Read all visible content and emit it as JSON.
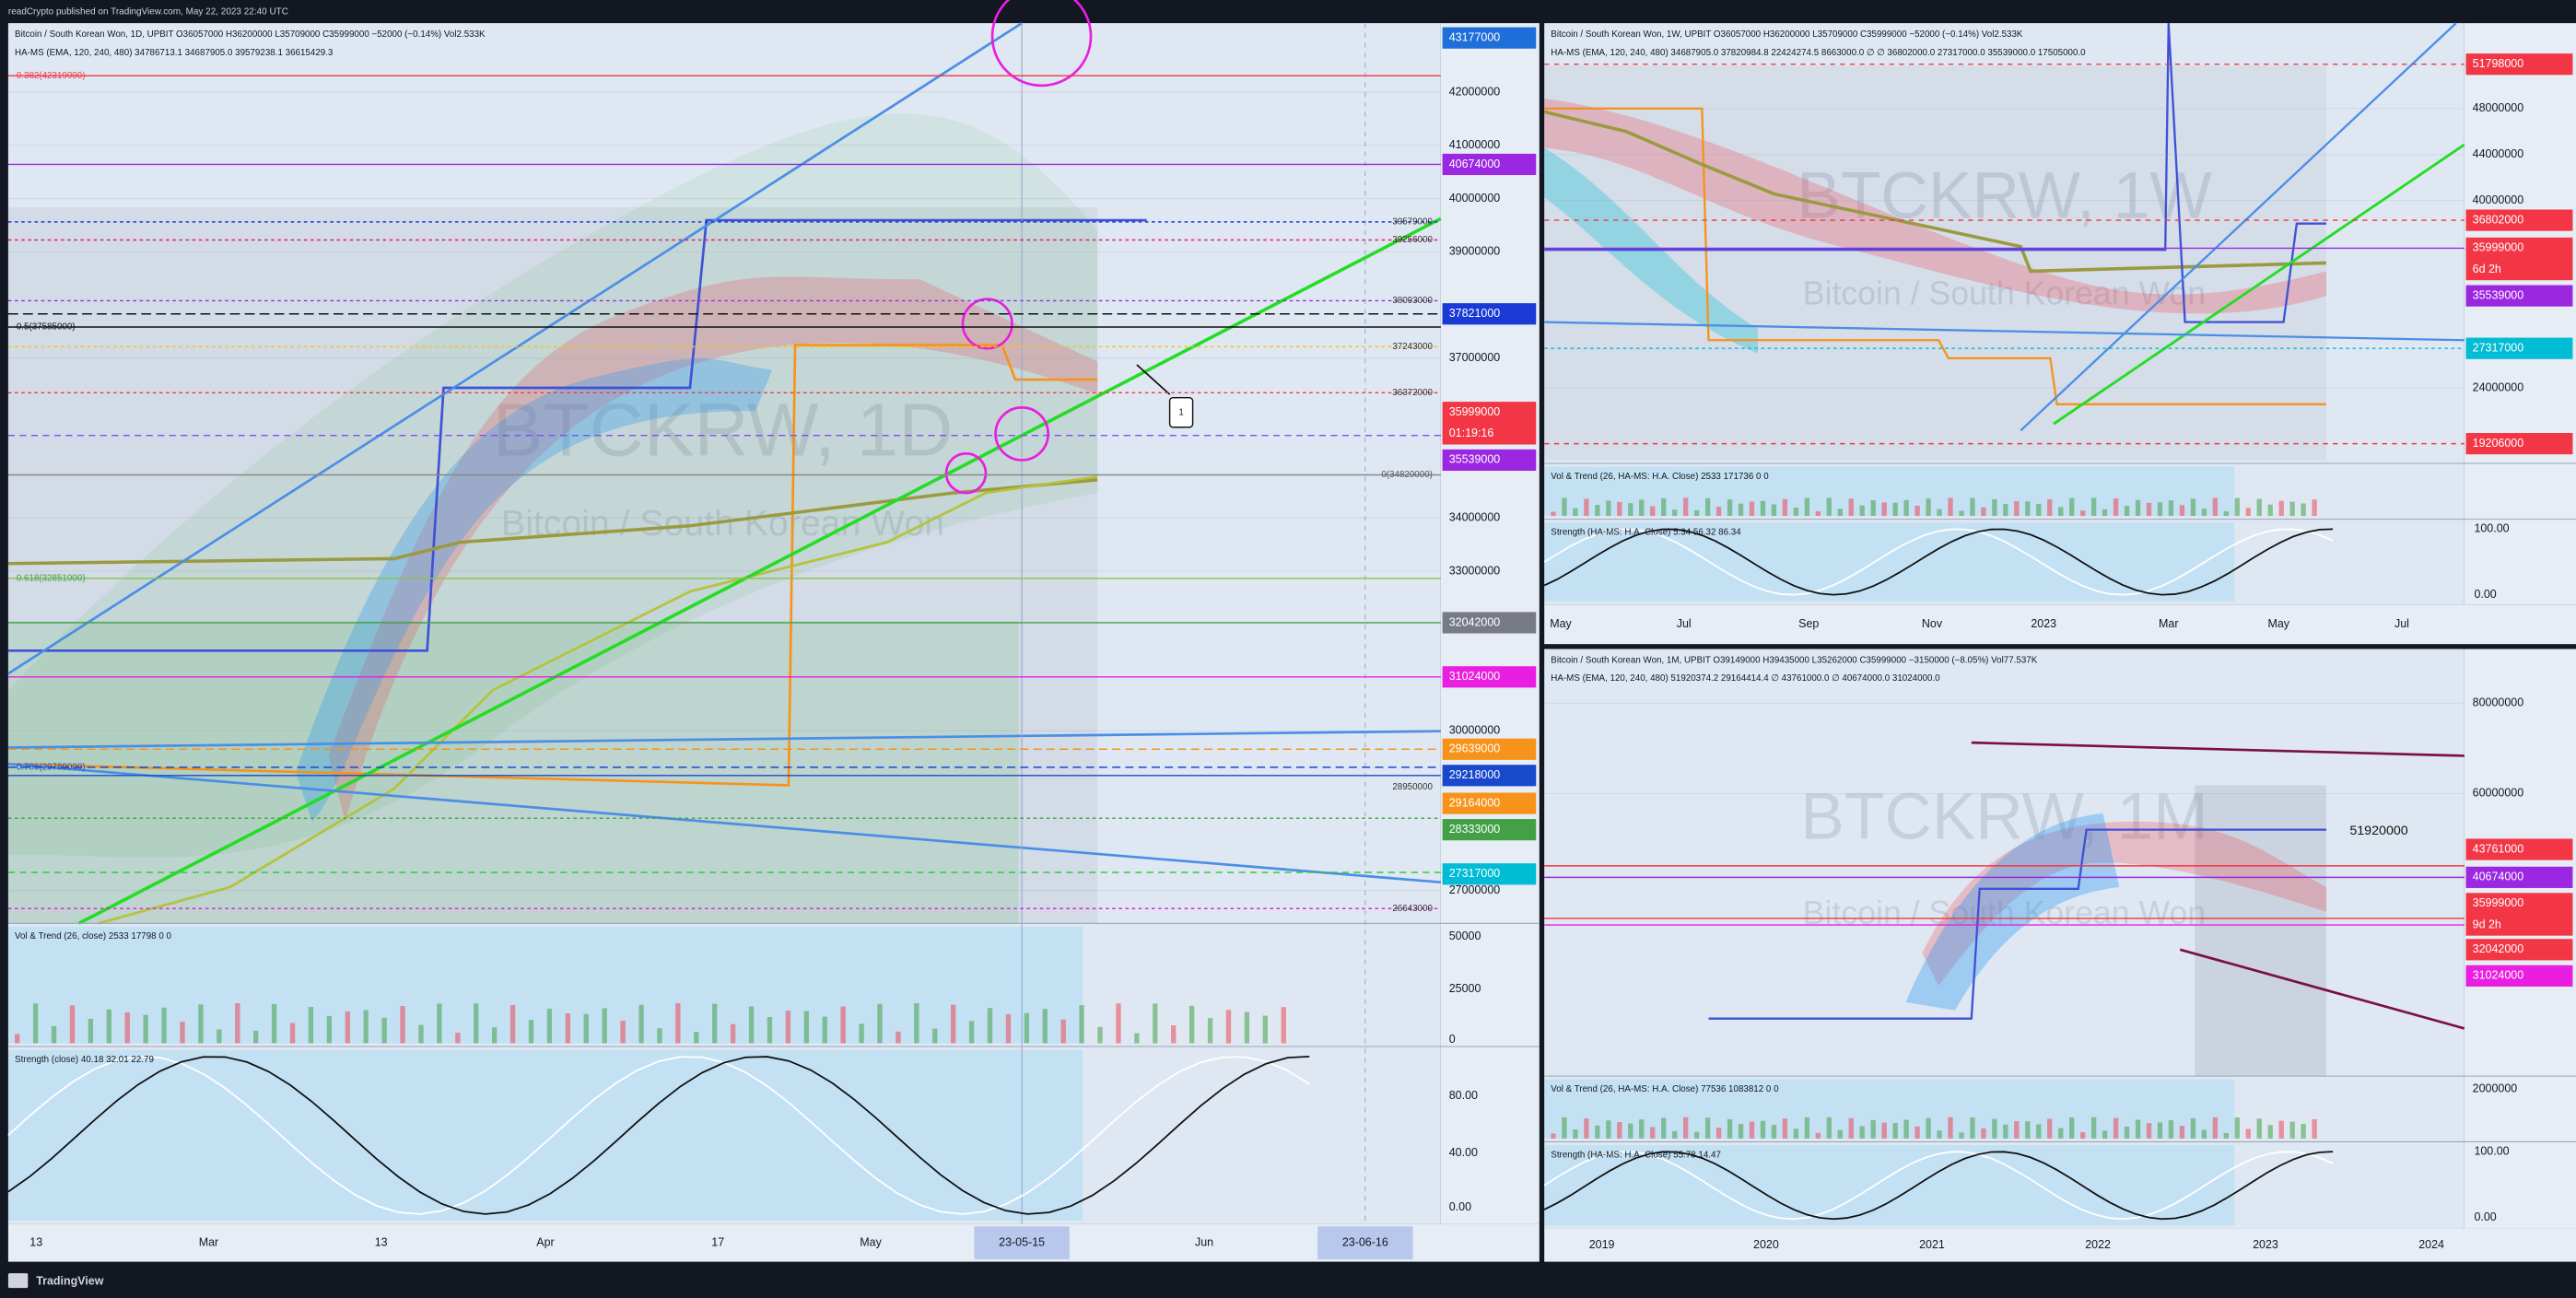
{
  "header": {
    "publisher": "readCrypto published on TradingView.com, May 22, 2023 22:40 UTC"
  },
  "footer": {
    "brand": "TradingView"
  },
  "panes": [
    {
      "watermark": "BTCKRW, 1D",
      "watermark_sub": "Bitcoin / South Korean Won",
      "legend_main": "Bitcoin / South Korean Won, 1D, UPBIT  O36057000  H36200000  L35709000  C35999000  −52000 (−0.14%)  Vol2.533K",
      "legend_ind": "HA-MS (EMA, 120, 240, 480)  34786713.1  34687905.0  39579238.1  36615429.3",
      "price_ticks": [
        42000000,
        41000000,
        40000000,
        39000000,
        37000000,
        34000000,
        33000000,
        30000000,
        27000000
      ],
      "badges": [
        {
          "label": 43177000
        },
        {
          "label": 40674000
        },
        {
          "label": 37821000
        },
        {
          "label": 35999000,
          "sub": "01:19:16"
        },
        {
          "label": 35539000
        },
        {
          "label": 32042000
        },
        {
          "label": 31024000
        },
        {
          "label": 29639000
        },
        {
          "label": 29218000
        },
        {
          "label": 29164000
        },
        {
          "label": 28333000
        },
        {
          "label": 27317000
        }
      ],
      "chart_labels": [
        "0.382(42319000)",
        39579000,
        39256000,
        38093000,
        "0.5(37585000)",
        37243000,
        36372000,
        "0(34820000)",
        "0.618(32851000)",
        "0.786(29789000)",
        28950000,
        26643000,
        "1"
      ],
      "vol_legend": "Vol & Trend (26, close)  2533  17798  0  0",
      "vol_ticks": [
        50000,
        25000,
        0
      ],
      "strength_legend": "Strength (close)  40.18  32.01  22.79",
      "strength_ticks": [
        "80.00",
        "40.00",
        "0.00"
      ],
      "time_labels": [
        "13",
        "Mar",
        "13",
        "Apr",
        "17",
        "May",
        "Jun"
      ],
      "time_badges": [
        "23-05-15",
        "23-06-16"
      ]
    },
    {
      "watermark": "BTCKRW, 1W",
      "watermark_sub": "Bitcoin / South Korean Won",
      "legend_main": "Bitcoin / South Korean Won, 1W, UPBIT  O36057000  H36200000  L35709000  C35999000  −52000 (−0.14%)  Vol2.533K",
      "legend_ind": "HA-MS (EMA, 120, 240, 480)  34687905.0  37820984.8  22424274.5  8663000.0  ∅  ∅  36802000.0  27317000.0  35539000.0  17505000.0",
      "price_ticks": [
        48000000,
        44000000,
        40000000,
        24000000
      ],
      "badges": [
        {
          "label": 51798000
        },
        {
          "label": 36802000
        },
        {
          "label": 35999000,
          "sub": "6d 2h"
        },
        {
          "label": 35539000
        },
        {
          "label": 27317000
        },
        {
          "label": 19206000
        }
      ],
      "chart_labels": [],
      "vol_legend": "Vol & Trend (26, HA-MS: H.A. Close)  2533  171736  0  0",
      "vol_ticks": [],
      "strength_legend": "Strength (HA-MS: H.A. Close)  5.34  56.32  86.34",
      "strength_ticks": [
        "100.00",
        "0.00"
      ],
      "time_labels": [
        "May",
        "Jul",
        "Sep",
        "Nov",
        "2023",
        "Mar",
        "May",
        "Jul"
      ],
      "time_badges": []
    },
    {
      "watermark": "BTCKRW, 1M",
      "watermark_sub": "Bitcoin / South Korean Won",
      "legend_main": "Bitcoin / South Korean Won, 1M, UPBIT  O39149000  H39435000  L35262000  C35999000  −3150000 (−8.05%)  Vol77.537K",
      "legend_ind": "HA-MS (EMA, 120, 240, 480)  51920374.2  29164414.4  ∅  43761000.0  ∅  40674000.0  31024000.0",
      "price_ticks": [
        80000000,
        60000000
      ],
      "badges": [
        {
          "label": 43761000
        },
        {
          "label": 40674000
        },
        {
          "label": 35999000,
          "sub": "9d 2h"
        },
        {
          "label": 32042000
        },
        {
          "label": 31024000
        }
      ],
      "chart_labels": [
        51920000
      ],
      "vol_legend": "Vol & Trend (26, HA-MS: H.A. Close)  77536  1083812  0  0",
      "vol_ticks": [
        2000000
      ],
      "strength_legend": "Strength (HA-MS: H.A. Close)  55.78  14.47",
      "strength_ticks": [
        "100.00",
        "0.00"
      ],
      "time_labels": [
        "2019",
        "2020",
        "2021",
        "2022",
        "2023",
        "2024"
      ],
      "time_badges": []
    }
  ]
}
